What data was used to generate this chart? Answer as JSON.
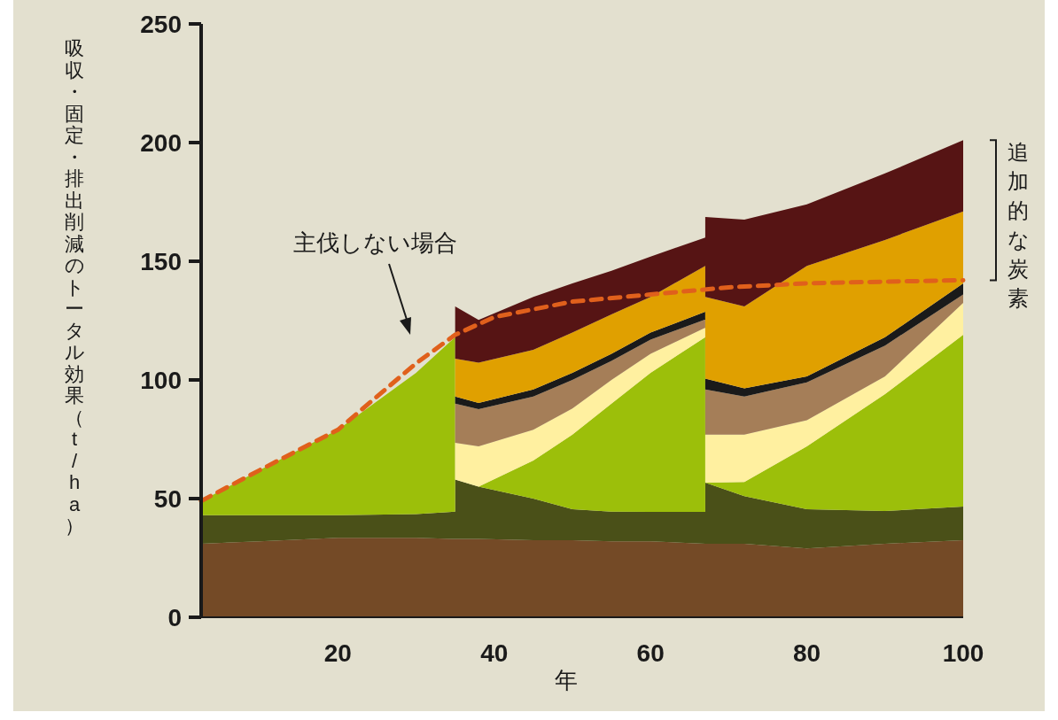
{
  "chart_data": {
    "type": "area",
    "stacked": true,
    "xlabel": "年",
    "ylabel": "吸収・固定・排出削減のトータル効果（t/ha）",
    "xlim": [
      2.5,
      100
    ],
    "ylim": [
      0,
      250
    ],
    "xticks": [
      20,
      40,
      60,
      80,
      100
    ],
    "yticks": [
      0,
      50,
      100,
      150,
      200,
      250
    ],
    "grid": false,
    "x": [
      2.5,
      10,
      20,
      30,
      35,
      35,
      38,
      45,
      50,
      55,
      60,
      67,
      67,
      72,
      80,
      90,
      100
    ],
    "series": [
      {
        "color": "#744a26",
        "values": [
          31,
          32,
          33.5,
          33.5,
          33,
          33,
          33,
          32.5,
          32.5,
          32,
          32,
          31,
          31,
          31,
          29,
          31,
          32.5
        ]
      },
      {
        "color": "#4a5018",
        "values": [
          12,
          11,
          9.5,
          10,
          11.5,
          25,
          22,
          17.5,
          13,
          12.5,
          12.4,
          13.4,
          25.7,
          20,
          16.5,
          13.8,
          14.1
        ]
      },
      {
        "color": "#9cbf0a",
        "values": [
          6,
          19,
          36,
          59.5,
          73.5,
          0,
          0,
          16,
          31.5,
          45.5,
          58.6,
          73.6,
          0,
          6,
          26.5,
          49.2,
          72.4
        ]
      },
      {
        "color": "#fff0a0",
        "values": [
          0,
          0,
          0,
          0,
          0,
          15.5,
          17,
          13,
          11,
          10,
          8,
          4,
          20.3,
          20,
          11,
          7.5,
          13.5
        ]
      },
      {
        "color": "#a57e58",
        "values": [
          0,
          0,
          0,
          0,
          0,
          16.5,
          15.7,
          14,
          12,
          8,
          6,
          3.5,
          19,
          16,
          16,
          13,
          3.5
        ]
      },
      {
        "color": "#1a1a1a",
        "values": [
          0,
          0,
          0,
          0,
          0,
          3,
          2.6,
          3,
          3,
          3,
          3,
          3.2,
          4.6,
          3.5,
          2.5,
          3.5,
          4.7
        ]
      },
      {
        "color": "#e0a000",
        "values": [
          0,
          0,
          0,
          0,
          0,
          16,
          17,
          16.7,
          17,
          16.6,
          15,
          19.3,
          34.4,
          34.5,
          46.5,
          41,
          30.3
        ]
      },
      {
        "color": "#561414",
        "values": [
          0,
          0,
          0,
          0,
          0,
          22,
          18,
          22.3,
          20.7,
          18.4,
          17,
          12,
          33.7,
          36.5,
          26,
          28,
          30
        ]
      },
      {
        "type": "line",
        "line_style": "dashed",
        "color": "#e0601c",
        "x": [
          2.5,
          10,
          20,
          30,
          35,
          40,
          50,
          60,
          70,
          80,
          90,
          100
        ],
        "values": [
          49,
          62,
          79,
          107,
          119,
          126.5,
          133,
          136,
          139,
          140.7,
          141.4,
          142
        ]
      }
    ],
    "annotations": [
      "主伐しない場合",
      "追加的な炭素"
    ]
  }
}
